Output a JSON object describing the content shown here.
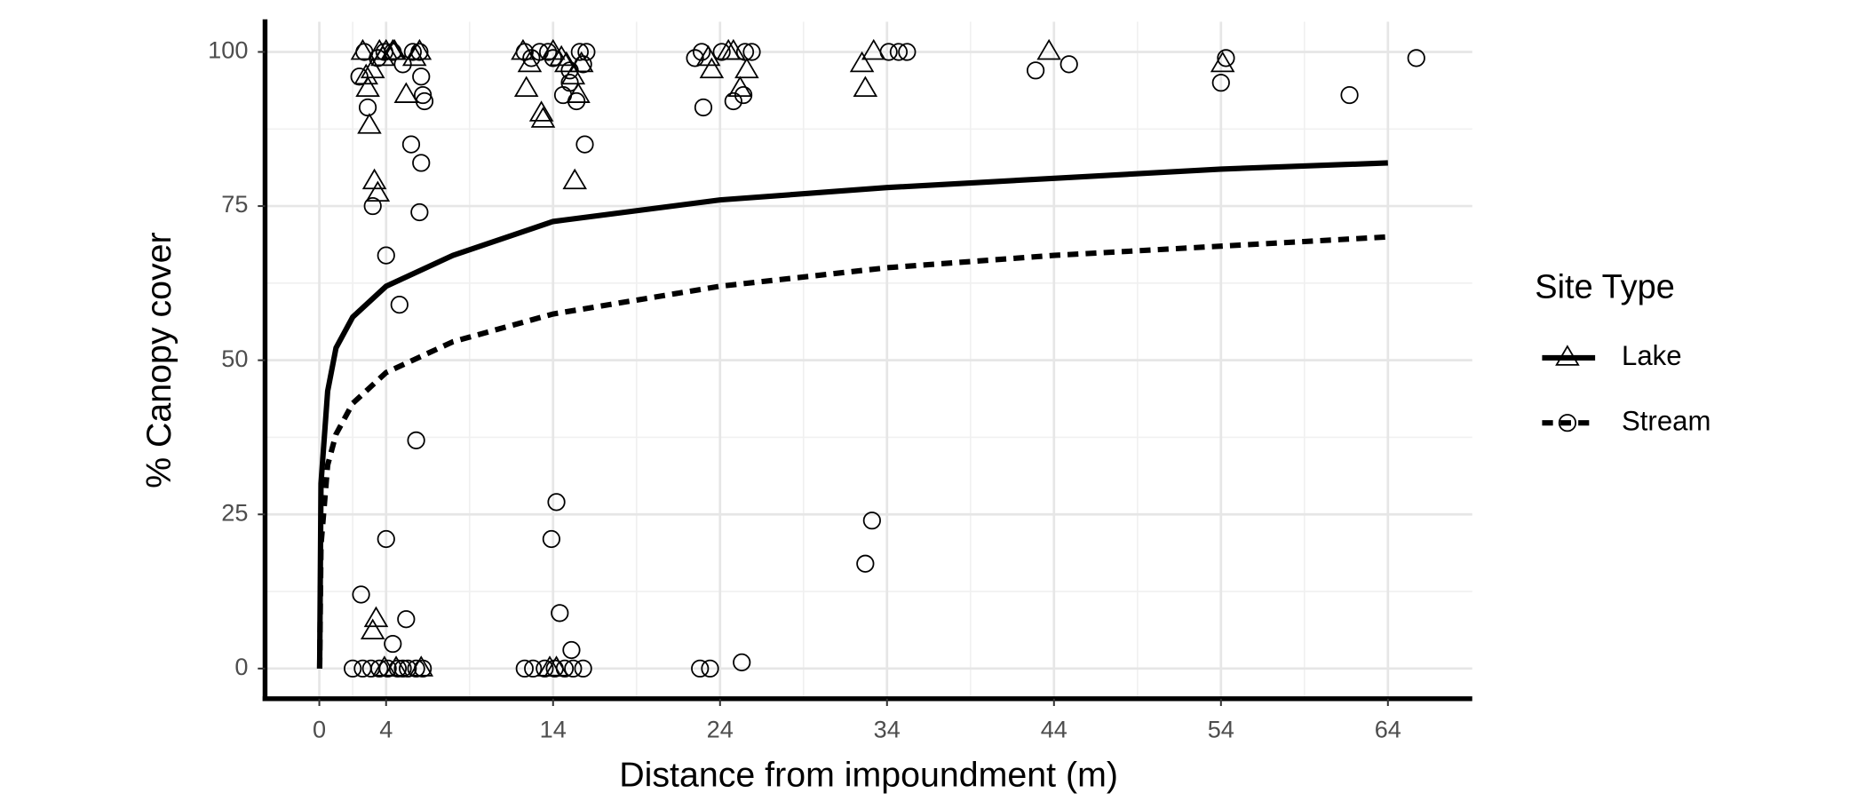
{
  "chart_data": {
    "type": "scatter",
    "x_label": "Distance from impoundment (m)",
    "y_label": "% Canopy cover",
    "legend_title": "Site Type",
    "legend_position": "right",
    "grid": true,
    "xlim": [
      -3.25,
      69.05
    ],
    "ylim": [
      -4.9,
      104.9
    ],
    "xticks": [
      0,
      4,
      14,
      24,
      34,
      44,
      54,
      64
    ],
    "yticks": [
      0,
      25,
      50,
      75,
      100
    ],
    "series": [
      {
        "name": "Lake",
        "color": "#000000",
        "marker": "triangle",
        "line_style": "solid",
        "x": [
          2.6,
          2.9,
          3.2,
          3.0,
          3.3,
          3.5,
          3.4,
          3.2,
          4.0,
          3.6,
          3.8,
          4.4,
          5.2,
          5.7,
          6.0,
          6.1,
          4.6,
          3.9,
          4.5,
          2.8,
          12.2,
          12.4,
          12.6,
          13.3,
          13.4,
          14.0,
          14.5,
          15.2,
          15.5,
          15.3,
          15.7,
          13.8,
          14.2,
          14.8,
          23.3,
          23.5,
          24.5,
          25.2,
          24.8,
          25.6,
          32.7,
          32.5,
          33.2,
          43.7,
          54.1
        ],
        "values": [
          100,
          94,
          97,
          88,
          79,
          77,
          8,
          6,
          100,
          100,
          99,
          100,
          93,
          99,
          100,
          0,
          0,
          0,
          100,
          96,
          100,
          94,
          98,
          90,
          89,
          100,
          99,
          96,
          93,
          79,
          98,
          0,
          0,
          98,
          99,
          97,
          100,
          94,
          100,
          97,
          94,
          98,
          100,
          100,
          98
        ],
        "fit_x": [
          0.02,
          0.1,
          0.5,
          1,
          2,
          4,
          8,
          14,
          24,
          34,
          44,
          54,
          64
        ],
        "fit_values": [
          0,
          30,
          45,
          52,
          57,
          62,
          67,
          72.5,
          76,
          78,
          79.5,
          81,
          82
        ]
      },
      {
        "name": "Stream",
        "color": "#000000",
        "marker": "circle",
        "line_style": "dashed",
        "x": [
          2.7,
          2.4,
          2.9,
          3.2,
          4.0,
          4.8,
          5.5,
          5.8,
          6.0,
          6.1,
          6.1,
          6.2,
          6.3,
          4.0,
          2.5,
          4.4,
          5.2,
          2.0,
          2.6,
          3.1,
          3.6,
          4.1,
          4.7,
          5.0,
          5.3,
          5.8,
          6.2,
          3.9,
          4.4,
          5.0,
          5.6,
          6.0,
          3.5,
          12.3,
          12.7,
          13.2,
          14.0,
          14.6,
          15.0,
          15.4,
          15.6,
          16.0,
          15.9,
          14.2,
          13.9,
          14.4,
          15.1,
          12.3,
          12.8,
          13.5,
          14.1,
          14.7,
          15.2,
          15.8,
          15.8,
          15.0,
          13.7,
          22.5,
          22.9,
          23.0,
          24.1,
          24.8,
          25.5,
          25.9,
          25.4,
          22.8,
          23.4,
          25.3,
          32.7,
          33.1,
          34.1,
          34.7,
          35.2,
          42.9,
          44.9,
          54.0,
          54.3,
          61.7,
          65.7
        ],
        "values": [
          100,
          96,
          91,
          75,
          67,
          59,
          85,
          37,
          74,
          82,
          96,
          93,
          92,
          21,
          12,
          4,
          8,
          0,
          0,
          0,
          0,
          0,
          0,
          0,
          0,
          0,
          0,
          100,
          100,
          98,
          100,
          100,
          99,
          100,
          99,
          100,
          99,
          93,
          95,
          92,
          100,
          100,
          85,
          27,
          21,
          9,
          3,
          0,
          0,
          0,
          0,
          0,
          0,
          0,
          98,
          97,
          100,
          99,
          100,
          91,
          100,
          92,
          100,
          100,
          93,
          0,
          0,
          1,
          17,
          24,
          100,
          100,
          100,
          97,
          98,
          95,
          99,
          93,
          99
        ],
        "fit_x": [
          0.02,
          0.1,
          0.5,
          1,
          2,
          4,
          8,
          14,
          24,
          34,
          44,
          54,
          64
        ],
        "fit_values": [
          0,
          20,
          33,
          38,
          43,
          48,
          53,
          57.5,
          62,
          65,
          67,
          68.5,
          70
        ]
      }
    ]
  }
}
